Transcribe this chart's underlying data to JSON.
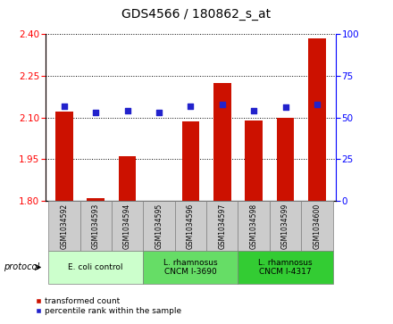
{
  "title": "GDS4566 / 180862_s_at",
  "samples": [
    "GSM1034592",
    "GSM1034593",
    "GSM1034594",
    "GSM1034595",
    "GSM1034596",
    "GSM1034597",
    "GSM1034598",
    "GSM1034599",
    "GSM1034600"
  ],
  "transformed_count": [
    2.12,
    1.81,
    1.96,
    1.8,
    2.085,
    2.225,
    2.09,
    2.1,
    2.385
  ],
  "percentile_rank": [
    57,
    53,
    54,
    53,
    57,
    58,
    54,
    56,
    58
  ],
  "ylim_left": [
    1.8,
    2.4
  ],
  "ylim_right": [
    0,
    100
  ],
  "yticks_left": [
    1.8,
    1.95,
    2.1,
    2.25,
    2.4
  ],
  "yticks_right": [
    0,
    25,
    50,
    75,
    100
  ],
  "bar_color": "#cc1100",
  "dot_color": "#2222cc",
  "groups": [
    {
      "label": "E. coli control",
      "indices": [
        0,
        1,
        2
      ],
      "color": "#ccffcc"
    },
    {
      "label": "L. rhamnosus\nCNCM I-3690",
      "indices": [
        3,
        4,
        5
      ],
      "color": "#66dd66"
    },
    {
      "label": "L. rhamnosus\nCNCM I-4317",
      "indices": [
        6,
        7,
        8
      ],
      "color": "#33cc33"
    }
  ],
  "legend_bar_label": "transformed count",
  "legend_dot_label": "percentile rank within the sample",
  "protocol_label": "protocol",
  "bar_width": 0.55,
  "sample_box_color": "#cccccc",
  "plot_bg": "#f0f0f0"
}
